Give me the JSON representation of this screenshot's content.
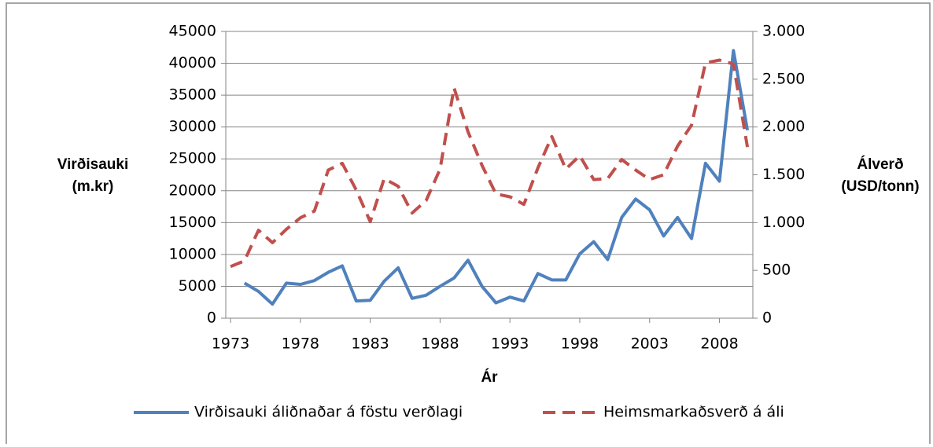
{
  "chart_data": {
    "type": "line",
    "ylabel": [
      "Virðisauki",
      "(m.kr)"
    ],
    "y2label": [
      "Álverð",
      "(USD/tonn)"
    ],
    "xlabel": "Ár",
    "x": [
      1973,
      1974,
      1975,
      1976,
      1977,
      1978,
      1979,
      1980,
      1981,
      1982,
      1983,
      1984,
      1985,
      1986,
      1987,
      1988,
      1989,
      1990,
      1991,
      1992,
      1993,
      1994,
      1995,
      1996,
      1997,
      1998,
      1999,
      2000,
      2001,
      2002,
      2003,
      2004,
      2005,
      2006,
      2007,
      2008,
      2009,
      2010
    ],
    "xlim": [
      1972.66,
      2010.39
    ],
    "xticks": [
      1973,
      1978,
      1983,
      1988,
      1993,
      1998,
      2003,
      2008
    ],
    "ylim": [
      0,
      45000
    ],
    "yticks": [
      0,
      5000,
      10000,
      15000,
      20000,
      25000,
      30000,
      35000,
      40000,
      45000
    ],
    "y2lim": [
      0,
      3000
    ],
    "y2ticks": [
      {
        "value": 0,
        "label": "0"
      },
      {
        "value": 500,
        "label": "500"
      },
      {
        "value": 1000,
        "label": "1.000"
      },
      {
        "value": 1500,
        "label": "1.500"
      },
      {
        "value": 2000,
        "label": "2.000"
      },
      {
        "value": 2500,
        "label": "2.500"
      },
      {
        "value": 3000,
        "label": "3.000"
      }
    ],
    "grid": true,
    "legend": "bottom",
    "series": [
      {
        "name": "Virðisauki áliðnaðar á föstu verðlagi",
        "color": "#4f81bd",
        "dash": false,
        "values": [
          null,
          5500,
          4200,
          2200,
          5500,
          5300,
          5900,
          7200,
          8200,
          2700,
          2800,
          5800,
          7900,
          3100,
          3600,
          5000,
          6300,
          9100,
          5000,
          2400,
          3300,
          2700,
          7000,
          6000,
          6000,
          10100,
          12000,
          9200,
          15800,
          18700,
          17000,
          12900,
          15800,
          12500,
          24300,
          21500,
          42000,
          29500
        ]
      },
      {
        "name": "Heimsmarkaðsverð á áli",
        "color": "#c0504d",
        "dash": true,
        "axis": "y2",
        "values": [
          540,
          600,
          920,
          790,
          930,
          1050,
          1120,
          1550,
          1620,
          1340,
          1010,
          1460,
          1380,
          1100,
          1230,
          1560,
          2410,
          1950,
          1600,
          1300,
          1270,
          1190,
          1570,
          1900,
          1560,
          1700,
          1450,
          1460,
          1660,
          1550,
          1450,
          1500,
          1800,
          2020,
          2670,
          2700,
          2660,
          1790
        ]
      }
    ]
  }
}
